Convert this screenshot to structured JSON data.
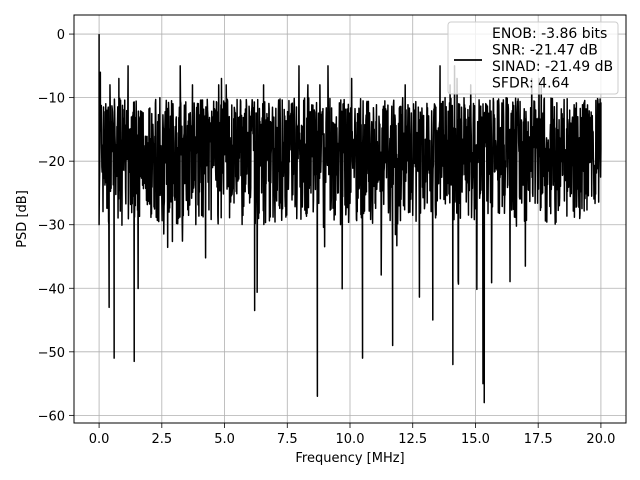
{
  "chart_data": {
    "type": "line",
    "title": "",
    "xlabel": "Frequency [MHz]",
    "ylabel": "PSD [dB]",
    "xlim": [
      -1.0,
      21.0
    ],
    "ylim": [
      -61.2,
      3.0
    ],
    "xticks": [
      0.0,
      2.5,
      5.0,
      7.5,
      10.0,
      12.5,
      15.0,
      17.5,
      20.0
    ],
    "xtick_labels": [
      "0.0",
      "2.5",
      "5.0",
      "7.5",
      "10.0",
      "12.5",
      "15.0",
      "17.5",
      "20.0"
    ],
    "yticks": [
      0,
      -10,
      -20,
      -30,
      -40,
      -50,
      -60
    ],
    "ytick_labels": [
      "0",
      "−10",
      "−20",
      "−30",
      "−40",
      "−50",
      "−60"
    ],
    "grid": true,
    "legend_position": "top-right",
    "legend_entries": [
      "ENOB: -3.86 bits",
      "SNR: -21.47 dB",
      "SINAD: -21.49 dB",
      "SFDR: 4.64"
    ],
    "series": [
      {
        "color": "#000000",
        "x": [
          0.0,
          0.05,
          0.1,
          0.2,
          0.4,
          0.6,
          1.0,
          1.4,
          2.0,
          3.0,
          4.0,
          5.0,
          6.2,
          7.0,
          8.0,
          8.7,
          9.0,
          10.0,
          10.5,
          11.0,
          11.7,
          12.0,
          13.0,
          13.3,
          14.0,
          14.1,
          14.5,
          15.0,
          15.3,
          15.35,
          15.5,
          16.0,
          17.0,
          18.0,
          19.0,
          19.5,
          20.0
        ],
        "y": [
          0.0,
          -6.0,
          -15.0,
          -20.0,
          -43.0,
          -51.0,
          -20.0,
          -51.5,
          -18.0,
          -20.0,
          -18.0,
          -19.0,
          -43.5,
          -18.0,
          -19.0,
          -57.0,
          -20.0,
          -18.0,
          -51.0,
          -18.0,
          -49.0,
          -18.0,
          -19.0,
          -45.0,
          -18.0,
          -52.0,
          -19.0,
          -18.0,
          -55.0,
          -58.0,
          -18.0,
          -19.0,
          -18.0,
          -19.0,
          -18.0,
          -19.0,
          -18.0
        ],
        "noise_band": [
          -30.0,
          -10.0
        ],
        "noise_peaks_y": [
          -5.0,
          -7.0,
          -8.0
        ]
      }
    ]
  }
}
